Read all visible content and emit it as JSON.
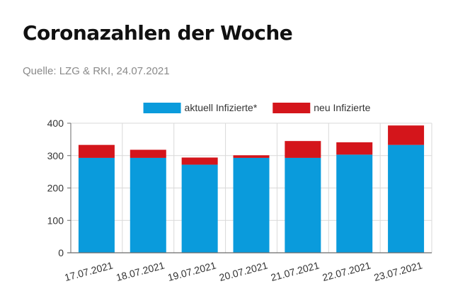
{
  "page": {
    "title": "Coronazahlen der Woche",
    "source": "Quelle: LZG & RKI, 24.07.2021"
  },
  "colors": {
    "series_active": "#0a9bdc",
    "series_new": "#d4151b",
    "grid": "#d9d9d9",
    "axis": "#6a6a6a",
    "tick_text": "#333333"
  },
  "chart_data": {
    "type": "bar",
    "stacked": true,
    "categories": [
      "17.07.2021",
      "18.07.2021",
      "19.07.2021",
      "20.07.2021",
      "21.07.2021",
      "22.07.2021",
      "23.07.2021"
    ],
    "series": [
      {
        "name": "aktuell Infizierte*",
        "color": "#0a9bdc",
        "values": [
          293,
          293,
          272,
          293,
          293,
          303,
          333
        ]
      },
      {
        "name": "neu Infizierte",
        "color": "#d4151b",
        "values": [
          40,
          25,
          22,
          8,
          52,
          38,
          60
        ]
      }
    ],
    "ylim": [
      0,
      400
    ],
    "yticks": [
      0,
      100,
      200,
      300,
      400
    ],
    "grid": true,
    "legend": "top"
  }
}
